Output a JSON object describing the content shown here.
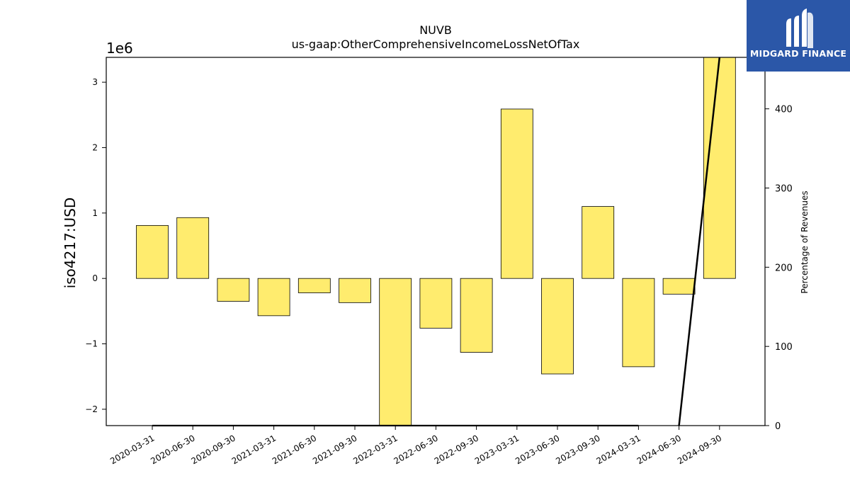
{
  "logo": {
    "text": "MIDGARD FINANCE",
    "icon": "midgard-m-logo-icon",
    "color": "#2b57a8"
  },
  "chart_data": {
    "type": "bar",
    "title": "NUVB",
    "subtitle": "us-gaap:OtherComprehensiveIncomeLossNetOfTax",
    "ylabel": "iso4217:USD",
    "y_scale_label": "1e6",
    "y2label": "Percentage of Revenues",
    "categories": [
      "2020-03-31",
      "2020-06-30",
      "2020-09-30",
      "2021-03-31",
      "2021-06-30",
      "2021-09-30",
      "2022-03-31",
      "2022-06-30",
      "2022-09-30",
      "2023-03-31",
      "2023-06-30",
      "2023-09-30",
      "2024-03-31",
      "2024-06-30",
      "2024-09-30"
    ],
    "series": [
      {
        "type": "bar",
        "color": "#ffec6e",
        "values": [
          810000,
          930000,
          -350000,
          -570000,
          -220000,
          -370000,
          -2300000,
          -760000,
          -1130000,
          2590000,
          -1460000,
          1100000,
          -1350000,
          -240000,
          3380000
        ]
      },
      {
        "type": "line",
        "axis": "right",
        "color": "#000000",
        "values": [
          0,
          0,
          0,
          0,
          0,
          0,
          0,
          0,
          0,
          0,
          0,
          0,
          0,
          0,
          465
        ]
      }
    ],
    "ylim": [
      -2250000,
      3380000
    ],
    "y_ticks": [
      -2000000,
      -1000000,
      0,
      1000000,
      2000000,
      3000000
    ],
    "y_tick_labels": [
      "−2",
      "−1",
      "0",
      "1",
      "2",
      "3"
    ],
    "y2lim": [
      0,
      465
    ],
    "y2_ticks": [
      0,
      100,
      200,
      300,
      400
    ],
    "y2_tick_labels": [
      "0",
      "100",
      "200",
      "300",
      "400"
    ],
    "grid": false,
    "legend": "none"
  }
}
